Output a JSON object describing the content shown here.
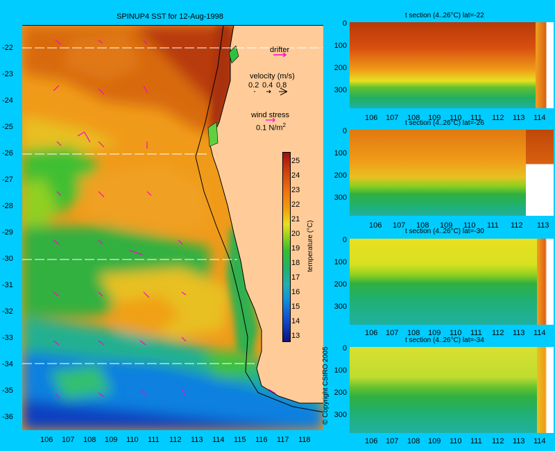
{
  "map": {
    "title": "SPINUP4 SST for 12-Aug-1998",
    "lat_ticks": [
      "-22",
      "-23",
      "-24",
      "-25",
      "-26",
      "-27",
      "-28",
      "-29",
      "-30",
      "-31",
      "-32",
      "-33",
      "-34",
      "-35",
      "-36"
    ],
    "lon_ticks": [
      "106",
      "107",
      "108",
      "109",
      "110",
      "111",
      "112",
      "113",
      "114",
      "115",
      "116",
      "117",
      "118"
    ],
    "drifter_label": "drifter",
    "velocity_label": "velocity (m/s)",
    "velocity_scale": [
      "0.2",
      "0.4",
      "0.8"
    ],
    "wind_label": "wind stress",
    "wind_scale": "0.1 N/m",
    "wind_scale_sup": "2",
    "section_latitudes": [
      -22,
      -26,
      -30,
      -34
    ],
    "copyright": "© Copyright CSIRO 2005"
  },
  "colorbar": {
    "label": "temperature (°C)",
    "ticks": [
      "25",
      "24",
      "23",
      "22",
      "21",
      "20",
      "19",
      "18",
      "17",
      "16",
      "15",
      "14",
      "13"
    ]
  },
  "sections": [
    {
      "title": "t section (4..26°C) lat=-22",
      "x_ticks": [
        "106",
        "107",
        "108",
        "109",
        "110",
        "111",
        "112",
        "113",
        "114"
      ],
      "y_ticks": [
        "0",
        "100",
        "200",
        "300"
      ]
    },
    {
      "title": "t section (4..26°C) lat=-26",
      "x_ticks": [
        "106",
        "107",
        "108",
        "109",
        "110",
        "111",
        "112",
        "113"
      ],
      "y_ticks": [
        "0",
        "100",
        "200",
        "300"
      ]
    },
    {
      "title": "t section (4..26°C) lat=-30",
      "x_ticks": [
        "106",
        "107",
        "108",
        "109",
        "110",
        "111",
        "112",
        "113",
        "114"
      ],
      "y_ticks": [
        "0",
        "100",
        "200",
        "300"
      ]
    },
    {
      "title": "t section (4..26°C) lat=-34",
      "x_ticks": [
        "106",
        "107",
        "108",
        "109",
        "110",
        "111",
        "112",
        "113",
        "114"
      ],
      "y_ticks": [
        "0",
        "100",
        "200",
        "300"
      ]
    }
  ]
}
